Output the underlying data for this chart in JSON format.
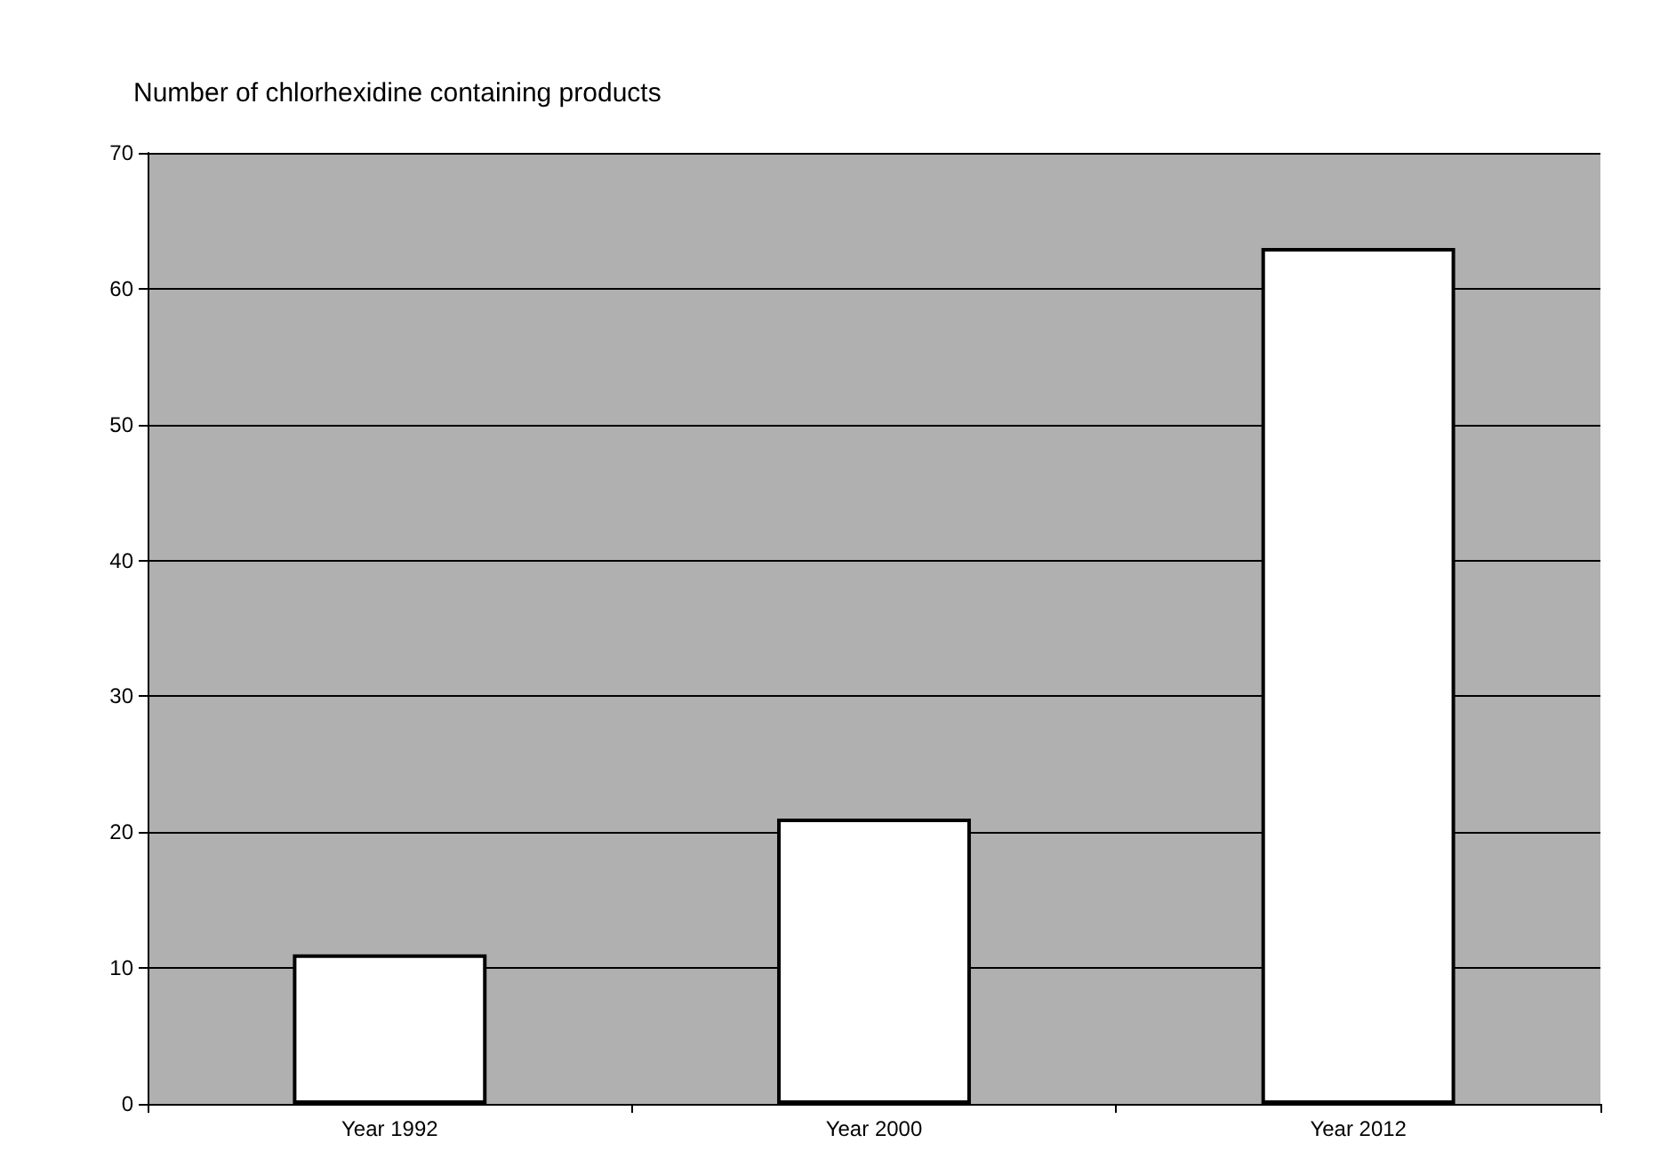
{
  "chart_data": {
    "type": "bar",
    "title": "Number of chlorhexidine containing products",
    "categories": [
      "Year 1992",
      "Year 2000",
      "Year 2012"
    ],
    "values": [
      11,
      21,
      63
    ],
    "color": "#ffffff",
    "ylim": [
      0,
      70
    ],
    "yticks": [
      0,
      10,
      20,
      30,
      40,
      50,
      60,
      70
    ],
    "grid": "y"
  }
}
